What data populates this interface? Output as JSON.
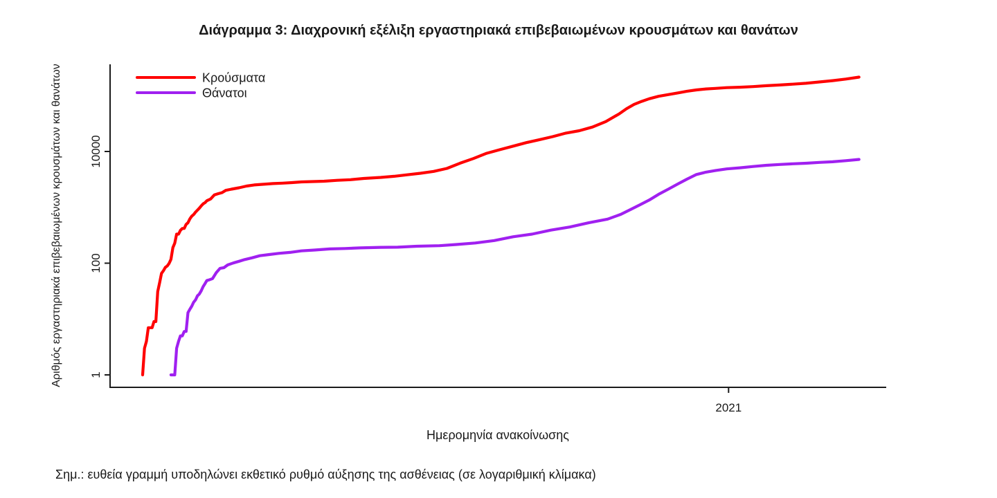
{
  "title": {
    "text": "Διάγραμμα 3: Διαχρονική εξέλιξη εργαστηριακά επιβεβαιωμένων κρουσμάτων και θανάτων"
  },
  "note": {
    "text": "Σημ.: ευθεία γραμμή υποδηλώνει εκθετικό ρυθμό αύξησης της ασθένειας (σε λογαριθμική κλίμακα)"
  },
  "chart_data": {
    "type": "line",
    "title": "Διάγραμμα 3: Διαχρονική εξέλιξη εργαστηριακά επιβεβαιωμένων κρουσμάτων και θανάτων",
    "xlabel": "Ημερομηνία ανακοίνωσης",
    "ylabel": "Αριθμός εργαστηριακά επιβεβαιωμένων κρουσμάτων και θανάτων",
    "yscale": "log",
    "ylim": [
      1,
      300000
    ],
    "grid": false,
    "axis_color": "#1a1a1a",
    "yticks": [
      {
        "value": 1,
        "label": "1"
      },
      {
        "value": 100,
        "label": "100"
      },
      {
        "value": 10000,
        "label": "10000"
      }
    ],
    "xticks": [
      {
        "date": "2021-01-01",
        "label": "2021"
      }
    ],
    "legend": {
      "position": "top-left",
      "entries": [
        {
          "key": "cases",
          "label": "Κρούσματα",
          "color": "#FF0000"
        },
        {
          "key": "deaths",
          "label": "Θάνατοι",
          "color": "#A020F0"
        }
      ]
    },
    "series": [
      {
        "key": "cases",
        "name": "Κρούσματα",
        "color": "#FF0000",
        "points": [
          [
            "2020-02-26",
            1
          ],
          [
            "2020-02-27",
            3
          ],
          [
            "2020-02-28",
            4
          ],
          [
            "2020-02-29",
            7
          ],
          [
            "2020-03-02",
            7
          ],
          [
            "2020-03-03",
            9
          ],
          [
            "2020-03-04",
            9
          ],
          [
            "2020-03-05",
            31
          ],
          [
            "2020-03-06",
            45
          ],
          [
            "2020-03-07",
            66
          ],
          [
            "2020-03-08",
            73
          ],
          [
            "2020-03-09",
            84
          ],
          [
            "2020-03-10",
            89
          ],
          [
            "2020-03-11",
            99
          ],
          [
            "2020-03-12",
            117
          ],
          [
            "2020-03-13",
            190
          ],
          [
            "2020-03-14",
            228
          ],
          [
            "2020-03-15",
            331
          ],
          [
            "2020-03-16",
            331
          ],
          [
            "2020-03-17",
            387
          ],
          [
            "2020-03-18",
            418
          ],
          [
            "2020-03-19",
            418
          ],
          [
            "2020-03-20",
            495
          ],
          [
            "2020-03-21",
            530
          ],
          [
            "2020-03-22",
            624
          ],
          [
            "2020-03-23",
            695
          ],
          [
            "2020-03-24",
            743
          ],
          [
            "2020-03-25",
            821
          ],
          [
            "2020-03-26",
            892
          ],
          [
            "2020-03-27",
            966
          ],
          [
            "2020-03-28",
            1061
          ],
          [
            "2020-03-29",
            1156
          ],
          [
            "2020-03-30",
            1212
          ],
          [
            "2020-03-31",
            1314
          ],
          [
            "2020-04-02",
            1415
          ],
          [
            "2020-04-04",
            1673
          ],
          [
            "2020-04-06",
            1755
          ],
          [
            "2020-04-08",
            1832
          ],
          [
            "2020-04-10",
            2011
          ],
          [
            "2020-04-13",
            2114
          ],
          [
            "2020-04-17",
            2235
          ],
          [
            "2020-04-21",
            2401
          ],
          [
            "2020-04-25",
            2517
          ],
          [
            "2020-04-30",
            2591
          ],
          [
            "2020-05-05",
            2663
          ],
          [
            "2020-05-10",
            2710
          ],
          [
            "2020-05-15",
            2770
          ],
          [
            "2020-05-20",
            2850
          ],
          [
            "2020-05-26",
            2892
          ],
          [
            "2020-06-01",
            2937
          ],
          [
            "2020-06-08",
            3049
          ],
          [
            "2020-06-15",
            3121
          ],
          [
            "2020-06-22",
            3287
          ],
          [
            "2020-07-01",
            3432
          ],
          [
            "2020-07-08",
            3589
          ],
          [
            "2020-07-15",
            3826
          ],
          [
            "2020-07-22",
            4077
          ],
          [
            "2020-07-29",
            4401
          ],
          [
            "2020-08-05",
            4974
          ],
          [
            "2020-08-12",
            6177
          ],
          [
            "2020-08-19",
            7472
          ],
          [
            "2020-08-26",
            9280
          ],
          [
            "2020-09-02",
            10757
          ],
          [
            "2020-09-09",
            12452
          ],
          [
            "2020-09-16",
            14400
          ],
          [
            "2020-09-23",
            16286
          ],
          [
            "2020-09-30",
            18475
          ],
          [
            "2020-10-07",
            21381
          ],
          [
            "2020-10-14",
            23495
          ],
          [
            "2020-10-21",
            27334
          ],
          [
            "2020-10-28",
            34299
          ],
          [
            "2020-11-04",
            46892
          ],
          [
            "2020-11-08",
            58187
          ],
          [
            "2020-11-12",
            69675
          ],
          [
            "2020-11-16",
            78825
          ],
          [
            "2020-11-20",
            87812
          ],
          [
            "2020-11-25",
            97288
          ],
          [
            "2020-11-30",
            104227
          ],
          [
            "2020-12-05",
            111537
          ],
          [
            "2020-12-10",
            119720
          ],
          [
            "2020-12-15",
            126372
          ],
          [
            "2020-12-20",
            131542
          ],
          [
            "2020-12-25",
            134841
          ],
          [
            "2020-12-31",
            138850
          ],
          [
            "2021-01-07",
            141453
          ],
          [
            "2021-01-14",
            145179
          ],
          [
            "2021-01-21",
            150479
          ],
          [
            "2021-01-28",
            154796
          ],
          [
            "2021-02-04",
            160496
          ],
          [
            "2021-02-11",
            166383
          ],
          [
            "2021-02-18",
            175850
          ],
          [
            "2021-02-25",
            185397
          ],
          [
            "2021-03-04",
            198241
          ],
          [
            "2021-03-11",
            214277
          ]
        ]
      },
      {
        "key": "deaths",
        "name": "Θάνατοι",
        "color": "#A020F0",
        "points": [
          [
            "2020-03-12",
            1
          ],
          [
            "2020-03-14",
            1
          ],
          [
            "2020-03-15",
            3
          ],
          [
            "2020-03-16",
            4
          ],
          [
            "2020-03-17",
            5
          ],
          [
            "2020-03-18",
            5
          ],
          [
            "2020-03-19",
            6
          ],
          [
            "2020-03-20",
            6
          ],
          [
            "2020-03-21",
            13
          ],
          [
            "2020-03-22",
            15
          ],
          [
            "2020-03-23",
            17
          ],
          [
            "2020-03-24",
            20
          ],
          [
            "2020-03-25",
            22
          ],
          [
            "2020-03-26",
            26
          ],
          [
            "2020-03-27",
            28
          ],
          [
            "2020-03-28",
            32
          ],
          [
            "2020-03-29",
            38
          ],
          [
            "2020-03-30",
            43
          ],
          [
            "2020-03-31",
            49
          ],
          [
            "2020-04-01",
            50
          ],
          [
            "2020-04-03",
            53
          ],
          [
            "2020-04-05",
            68
          ],
          [
            "2020-04-07",
            81
          ],
          [
            "2020-04-09",
            83
          ],
          [
            "2020-04-11",
            93
          ],
          [
            "2020-04-14",
            101
          ],
          [
            "2020-04-17",
            108
          ],
          [
            "2020-04-20",
            116
          ],
          [
            "2020-04-24",
            125
          ],
          [
            "2020-04-28",
            136
          ],
          [
            "2020-05-03",
            143
          ],
          [
            "2020-05-08",
            150
          ],
          [
            "2020-05-14",
            156
          ],
          [
            "2020-05-20",
            166
          ],
          [
            "2020-05-27",
            172
          ],
          [
            "2020-06-04",
            180
          ],
          [
            "2020-06-12",
            183
          ],
          [
            "2020-06-20",
            188
          ],
          [
            "2020-07-01",
            192
          ],
          [
            "2020-07-10",
            193
          ],
          [
            "2020-07-20",
            201
          ],
          [
            "2020-08-01",
            206
          ],
          [
            "2020-08-10",
            216
          ],
          [
            "2020-08-20",
            230
          ],
          [
            "2020-08-30",
            254
          ],
          [
            "2020-09-09",
            297
          ],
          [
            "2020-09-19",
            331
          ],
          [
            "2020-09-29",
            391
          ],
          [
            "2020-10-09",
            444
          ],
          [
            "2020-10-19",
            528
          ],
          [
            "2020-10-29",
            615
          ],
          [
            "2020-11-05",
            749
          ],
          [
            "2020-11-10",
            909
          ],
          [
            "2020-11-15",
            1106
          ],
          [
            "2020-11-20",
            1347
          ],
          [
            "2020-11-25",
            1714
          ],
          [
            "2020-11-30",
            2102
          ],
          [
            "2020-12-05",
            2606
          ],
          [
            "2020-12-10",
            3194
          ],
          [
            "2020-12-15",
            3870
          ],
          [
            "2020-12-20",
            4257
          ],
          [
            "2020-12-25",
            4553
          ],
          [
            "2020-12-31",
            4881
          ],
          [
            "2021-01-07",
            5099
          ],
          [
            "2021-01-14",
            5387
          ],
          [
            "2021-01-21",
            5646
          ],
          [
            "2021-01-28",
            5851
          ],
          [
            "2021-02-04",
            6017
          ],
          [
            "2021-02-11",
            6152
          ],
          [
            "2021-02-18",
            6371
          ],
          [
            "2021-02-25",
            6534
          ],
          [
            "2021-03-04",
            6843
          ],
          [
            "2021-03-11",
            7196
          ]
        ]
      }
    ]
  }
}
